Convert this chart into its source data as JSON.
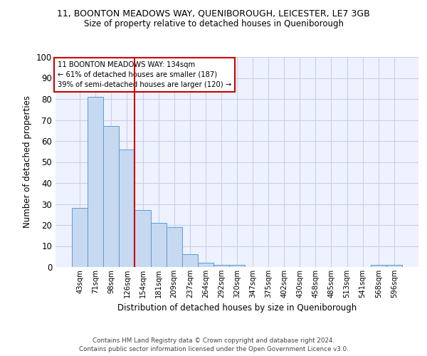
{
  "title1": "11, BOONTON MEADOWS WAY, QUENIBOROUGH, LEICESTER, LE7 3GB",
  "title2": "Size of property relative to detached houses in Queniborough",
  "xlabel": "Distribution of detached houses by size in Queniborough",
  "ylabel": "Number of detached properties",
  "footer1": "Contains HM Land Registry data © Crown copyright and database right 2024.",
  "footer2": "Contains public sector information licensed under the Open Government Licence v3.0.",
  "annotation_line1": "11 BOONTON MEADOWS WAY: 134sqm",
  "annotation_line2": "← 61% of detached houses are smaller (187)",
  "annotation_line3": "39% of semi-detached houses are larger (120) →",
  "bar_labels": [
    "43sqm",
    "71sqm",
    "98sqm",
    "126sqm",
    "154sqm",
    "181sqm",
    "209sqm",
    "237sqm",
    "264sqm",
    "292sqm",
    "320sqm",
    "347sqm",
    "375sqm",
    "402sqm",
    "430sqm",
    "458sqm",
    "485sqm",
    "513sqm",
    "541sqm",
    "568sqm",
    "596sqm"
  ],
  "bar_values": [
    28,
    81,
    67,
    56,
    27,
    21,
    19,
    6,
    2,
    1,
    1,
    0,
    0,
    0,
    0,
    0,
    0,
    0,
    0,
    1,
    1
  ],
  "bar_color": "#c6d9f1",
  "bar_edge_color": "#5b9bd5",
  "vline_color": "#cc0000",
  "annotation_box_color": "#cc0000",
  "grid_color": "#c8d0e8",
  "bg_color": "#eef2ff",
  "ylim": [
    0,
    100
  ],
  "yticks": [
    0,
    10,
    20,
    30,
    40,
    50,
    60,
    70,
    80,
    90,
    100
  ]
}
